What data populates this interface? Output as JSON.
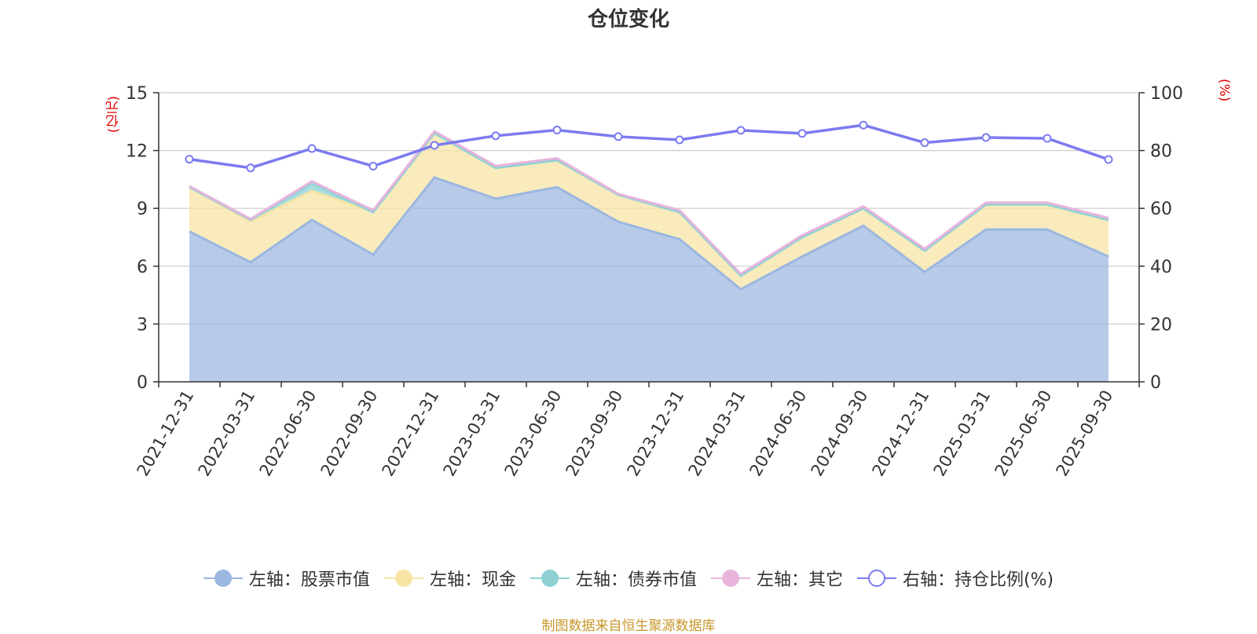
{
  "chart_data": {
    "type": "area",
    "title": "仓位变化",
    "categories": [
      "2021-12-31",
      "2022-03-31",
      "2022-06-30",
      "2022-09-30",
      "2022-12-31",
      "2023-03-31",
      "2023-06-30",
      "2023-09-30",
      "2023-12-31",
      "2024-03-31",
      "2024-06-30",
      "2024-09-30",
      "2024-12-31",
      "2025-03-31",
      "2025-06-30",
      "2025-09-30"
    ],
    "left_axis": {
      "unit": "(亿元)",
      "ylim": [
        0,
        15
      ],
      "ticks": [
        0,
        3,
        6,
        9,
        12,
        15
      ]
    },
    "right_axis": {
      "unit": "(%)",
      "ylim": [
        0,
        100
      ],
      "ticks": [
        0,
        20,
        40,
        60,
        80,
        100
      ]
    },
    "grid": true,
    "legend_position": "bottom",
    "series": [
      {
        "name": "左轴：股票市值",
        "axis": "left",
        "type": "area",
        "stacked": true,
        "color": "#9bb7e0",
        "values": [
          7.8,
          6.2,
          8.4,
          6.6,
          10.6,
          9.5,
          10.1,
          8.3,
          7.4,
          4.8,
          6.5,
          8.1,
          5.7,
          7.9,
          7.9,
          6.5
        ]
      },
      {
        "name": "左轴：现金",
        "axis": "left",
        "type": "area",
        "stacked": true,
        "color": "#f7e4a5",
        "values": [
          2.3,
          2.1,
          1.5,
          2.2,
          2.3,
          1.6,
          1.4,
          1.4,
          1.4,
          0.7,
          1.0,
          0.9,
          1.1,
          1.3,
          1.3,
          1.9
        ]
      },
      {
        "name": "左轴：债券市值",
        "axis": "left",
        "type": "area",
        "stacked": true,
        "color": "#8ed1d4",
        "values": [
          0,
          0.1,
          0.4,
          0,
          0,
          0,
          0,
          0,
          0,
          0,
          0,
          0,
          0,
          0,
          0,
          0
        ]
      },
      {
        "name": "左轴：其它",
        "axis": "left",
        "type": "area",
        "stacked": true,
        "color": "#e8b4dc",
        "values": [
          0.05,
          0.05,
          0.1,
          0.1,
          0.1,
          0.1,
          0.1,
          0.05,
          0.1,
          0.1,
          0.1,
          0.1,
          0.1,
          0.1,
          0.1,
          0.1
        ]
      },
      {
        "name": "右轴：持仓比例(%)",
        "axis": "right",
        "type": "line",
        "color": "#7b7bf0",
        "values": [
          77.0,
          74.0,
          80.7,
          74.6,
          81.8,
          85.1,
          87.1,
          84.8,
          83.7,
          87.0,
          85.9,
          88.8,
          82.7,
          84.5,
          84.2,
          76.9
        ]
      }
    ],
    "source_note": "制图数据来自恒生聚源数据库"
  }
}
